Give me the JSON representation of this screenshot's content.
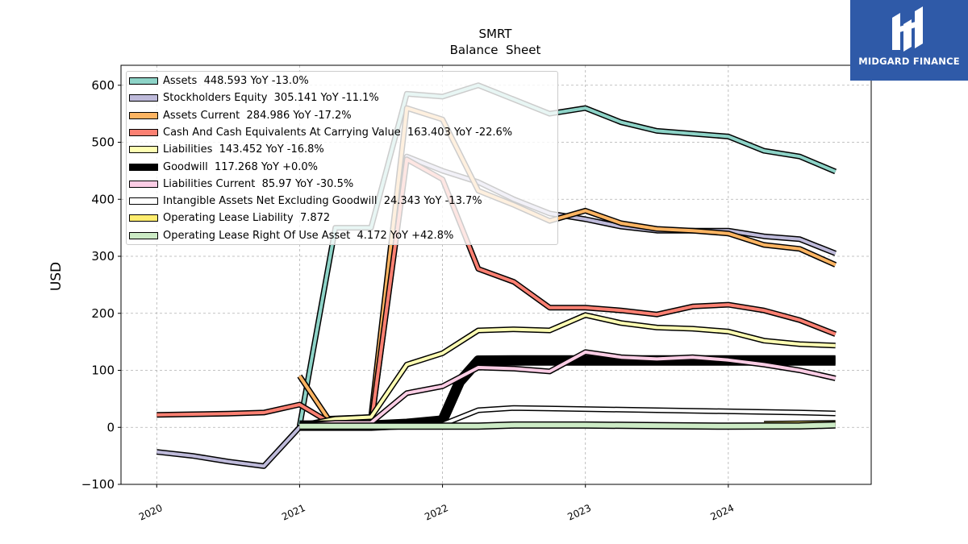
{
  "chart_data": {
    "type": "line",
    "title": "SMRT",
    "subtitle": "Balance  Sheet",
    "ylabel": "USD",
    "xlabel": "",
    "xlim": [
      2019.75,
      2025.0
    ],
    "ylim": [
      -100,
      635
    ],
    "grid": true,
    "legend_position": "top-left",
    "x_ticks": [
      {
        "value": 2020,
        "label": "2020"
      },
      {
        "value": 2021,
        "label": "2021"
      },
      {
        "value": 2022,
        "label": "2022"
      },
      {
        "value": 2023,
        "label": "2023"
      },
      {
        "value": 2024,
        "label": "2024"
      }
    ],
    "y_ticks": [
      {
        "value": -100,
        "label": "−100"
      },
      {
        "value": 0,
        "label": "0"
      },
      {
        "value": 100,
        "label": "100"
      },
      {
        "value": 200,
        "label": "200"
      },
      {
        "value": 300,
        "label": "300"
      },
      {
        "value": 400,
        "label": "400"
      },
      {
        "value": 500,
        "label": "500"
      },
      {
        "value": 600,
        "label": "600"
      }
    ],
    "series": [
      {
        "name": "Assets",
        "legend": "Assets  448.593 YoY -13.0%",
        "color": "#8dd3c7",
        "width": 4,
        "points": [
          [
            2021.0,
            2
          ],
          [
            2021.25,
            350
          ],
          [
            2021.5,
            350
          ],
          [
            2021.75,
            585
          ],
          [
            2022.0,
            580
          ],
          [
            2022.25,
            600
          ],
          [
            2022.5,
            575
          ],
          [
            2022.75,
            550
          ],
          [
            2023.0,
            560
          ],
          [
            2023.25,
            535
          ],
          [
            2023.5,
            520
          ],
          [
            2023.75,
            515
          ],
          [
            2024.0,
            510
          ],
          [
            2024.25,
            485
          ],
          [
            2024.5,
            475
          ],
          [
            2024.75,
            448.593
          ]
        ]
      },
      {
        "name": "Stockholders Equity",
        "legend": "Stockholders Equity  305.141 YoY -11.1%",
        "color": "#bebada",
        "width": 4,
        "points": [
          [
            2020.0,
            -43
          ],
          [
            2020.25,
            -50
          ],
          [
            2020.5,
            -60
          ],
          [
            2020.75,
            -68
          ],
          [
            2021.0,
            0
          ],
          [
            2021.25,
            5
          ],
          [
            2021.5,
            5
          ],
          [
            2021.75,
            475
          ],
          [
            2022.0,
            450
          ],
          [
            2022.25,
            430
          ],
          [
            2022.5,
            400
          ],
          [
            2022.75,
            375
          ],
          [
            2023.0,
            365
          ],
          [
            2023.25,
            352
          ],
          [
            2023.5,
            345
          ],
          [
            2023.75,
            345
          ],
          [
            2024.0,
            345
          ],
          [
            2024.25,
            335
          ],
          [
            2024.5,
            330
          ],
          [
            2024.75,
            305.141
          ]
        ]
      },
      {
        "name": "Assets Current",
        "legend": "Assets Current  284.986 YoY -17.2%",
        "color": "#fdb462",
        "width": 4,
        "points": [
          [
            2021.0,
            90
          ],
          [
            2021.2,
            15
          ],
          [
            2021.5,
            18
          ],
          [
            2021.75,
            560
          ],
          [
            2022.0,
            540
          ],
          [
            2022.25,
            415
          ],
          [
            2022.5,
            390
          ],
          [
            2022.75,
            362
          ],
          [
            2023.0,
            380
          ],
          [
            2023.25,
            358
          ],
          [
            2023.5,
            348
          ],
          [
            2023.75,
            345
          ],
          [
            2024.0,
            340
          ],
          [
            2024.25,
            320
          ],
          [
            2024.5,
            313
          ],
          [
            2024.75,
            284.986
          ]
        ]
      },
      {
        "name": "Cash And Cash Equivalents At Carrying Value",
        "legend": "Cash And Cash Equivalents At Carrying Value  163.403 YoY -22.6%",
        "color": "#fb8072",
        "width": 4,
        "points": [
          [
            2020.0,
            22
          ],
          [
            2020.25,
            23
          ],
          [
            2020.5,
            24
          ],
          [
            2020.75,
            26
          ],
          [
            2021.0,
            40
          ],
          [
            2021.2,
            10
          ],
          [
            2021.5,
            5
          ],
          [
            2021.75,
            470
          ],
          [
            2022.0,
            435
          ],
          [
            2022.25,
            278
          ],
          [
            2022.5,
            255
          ],
          [
            2022.75,
            210
          ],
          [
            2023.0,
            210
          ],
          [
            2023.25,
            205
          ],
          [
            2023.5,
            198
          ],
          [
            2023.75,
            212
          ],
          [
            2024.0,
            215
          ],
          [
            2024.25,
            205
          ],
          [
            2024.5,
            188
          ],
          [
            2024.75,
            163.403
          ]
        ]
      },
      {
        "name": "Liabilities",
        "legend": "Liabilities  143.452 YoY -16.8%",
        "color": "#ffffb3",
        "width": 4,
        "points": [
          [
            2021.0,
            3
          ],
          [
            2021.25,
            15
          ],
          [
            2021.5,
            18
          ],
          [
            2021.75,
            110
          ],
          [
            2022.0,
            130
          ],
          [
            2022.25,
            170
          ],
          [
            2022.5,
            172
          ],
          [
            2022.75,
            170
          ],
          [
            2023.0,
            197
          ],
          [
            2023.25,
            183
          ],
          [
            2023.5,
            175
          ],
          [
            2023.75,
            173
          ],
          [
            2024.0,
            168
          ],
          [
            2024.25,
            152
          ],
          [
            2024.5,
            146
          ],
          [
            2024.75,
            143.452
          ]
        ]
      },
      {
        "name": "Goodwill",
        "legend": "Goodwill  117.268 YoY +0.0%",
        "color": "#000000",
        "width": 10,
        "points": [
          [
            2021.0,
            3
          ],
          [
            2021.5,
            3
          ],
          [
            2021.75,
            6
          ],
          [
            2022.0,
            12
          ],
          [
            2022.12,
            80
          ],
          [
            2022.25,
            117
          ],
          [
            2022.5,
            117.268
          ],
          [
            2023.0,
            117.268
          ],
          [
            2024.0,
            117.268
          ],
          [
            2024.75,
            117.268
          ]
        ]
      },
      {
        "name": "Liabilities Current",
        "legend": "Liabilities Current  85.97 YoY -30.5%",
        "color": "#fccde5",
        "width": 4,
        "points": [
          [
            2021.0,
            3
          ],
          [
            2021.25,
            8
          ],
          [
            2021.5,
            8
          ],
          [
            2021.75,
            60
          ],
          [
            2022.0,
            72
          ],
          [
            2022.25,
            105
          ],
          [
            2022.5,
            103
          ],
          [
            2022.75,
            98
          ],
          [
            2023.0,
            132
          ],
          [
            2023.25,
            123
          ],
          [
            2023.5,
            120
          ],
          [
            2023.75,
            123
          ],
          [
            2024.0,
            118
          ],
          [
            2024.25,
            110
          ],
          [
            2024.5,
            100
          ],
          [
            2024.75,
            85.97
          ]
        ]
      },
      {
        "name": "Intangible Assets Net Excluding Goodwill",
        "legend": "Intangible Assets Net Excluding Goodwill  24.343 YoY -13.7%",
        "color": "#ffffff",
        "width": 4,
        "points": [
          [
            2021.0,
            3
          ],
          [
            2021.5,
            3
          ],
          [
            2021.75,
            3
          ],
          [
            2022.0,
            5
          ],
          [
            2022.25,
            30
          ],
          [
            2022.5,
            34
          ],
          [
            2022.75,
            33
          ],
          [
            2023.0,
            32
          ],
          [
            2023.5,
            30
          ],
          [
            2024.0,
            28
          ],
          [
            2024.5,
            26
          ],
          [
            2024.75,
            24.343
          ]
        ]
      },
      {
        "name": "Operating Lease Liability",
        "legend": "Operating Lease Liability  7.872",
        "color": "#ffed6f",
        "width": 4,
        "points": [
          [
            2024.25,
            6.5
          ],
          [
            2024.5,
            7
          ],
          [
            2024.75,
            7.872
          ]
        ]
      },
      {
        "name": "Operating Lease Right Of Use Asset",
        "legend": "Operating Lease Right Of Use Asset  4.172 YoY +42.8%",
        "color": "#ccebc5",
        "width": 6,
        "points": [
          [
            2021.0,
            2
          ],
          [
            2021.5,
            2
          ],
          [
            2022.0,
            2
          ],
          [
            2022.25,
            2
          ],
          [
            2022.5,
            4
          ],
          [
            2023.0,
            4
          ],
          [
            2023.5,
            3
          ],
          [
            2024.0,
            2
          ],
          [
            2024.5,
            2.5
          ],
          [
            2024.75,
            4.172
          ]
        ]
      }
    ]
  },
  "watermark": {
    "text": "MIDGARD FINANCE",
    "icon": "midgard-logo-icon",
    "background": "#2f5aa8"
  }
}
